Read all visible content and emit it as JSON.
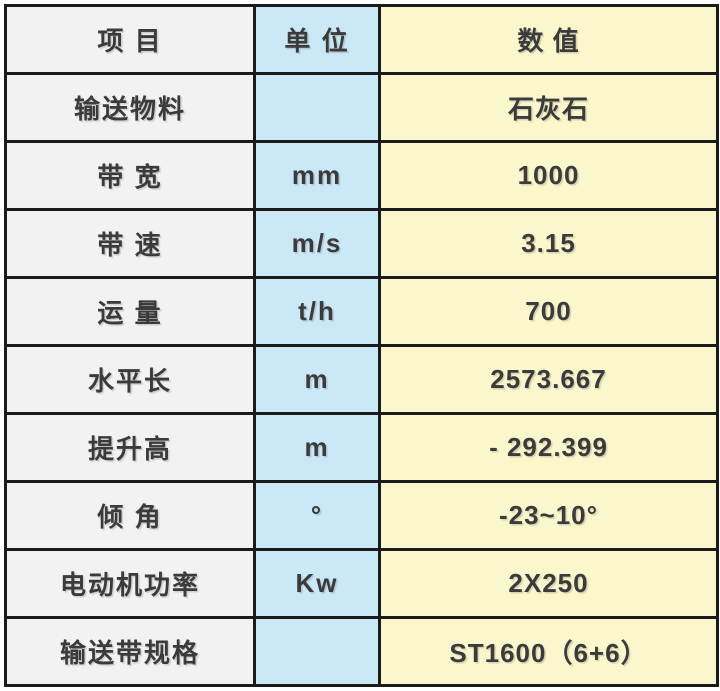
{
  "chart_data": {
    "type": "table",
    "title": "",
    "columns": [
      "项  目",
      "单  位",
      "数  值"
    ],
    "rows": [
      [
        "输送物料",
        "",
        "石灰石"
      ],
      [
        "带  宽",
        "mm",
        "1000"
      ],
      [
        "带  速",
        "m/s",
        "3.15"
      ],
      [
        "运  量",
        "t/h",
        "700"
      ],
      [
        "水平长",
        "m",
        "2573.667"
      ],
      [
        "提升高",
        "m",
        "- 292.399"
      ],
      [
        "倾  角",
        "°",
        "-23~10°"
      ],
      [
        "电动机功率",
        "Kw",
        "2X250"
      ],
      [
        "输送带规格",
        "",
        "ST1600（6+6）"
      ]
    ],
    "layout": {
      "grid": true,
      "header_row": true
    }
  },
  "colors": {
    "item_column_bg": "#f2f2f2",
    "unit_column_bg": "#cbe8f7",
    "value_column_bg": "#fbf7cc",
    "border": "#1b1b1b",
    "text": "#3b3b3b",
    "page_bg": "#ffffff"
  }
}
